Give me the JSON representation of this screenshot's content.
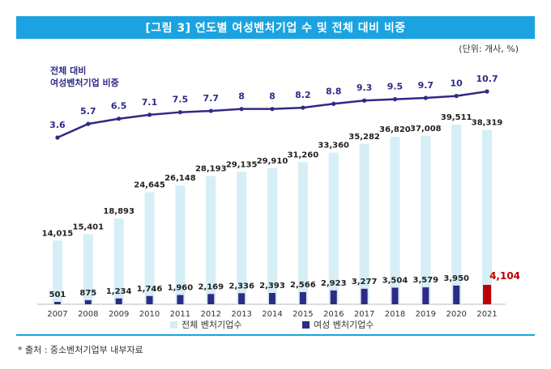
{
  "header": {
    "title": "[그림 3] 연도별 여성벤처기업 수 및 전체 대비 비중",
    "unit": "(단위: 개사, %)"
  },
  "footer": {
    "source": "* 출처 : 중소벤처기업부 내부자료"
  },
  "colors": {
    "title_bg": "#1aa3e0",
    "total_bar": "#d6eef5",
    "women_bar": "#2e2a86",
    "women_bar_highlight": "#c00000",
    "ratio_line": "#2e2a86",
    "highlight_label": "#c00000"
  },
  "chart_data": {
    "type": "bar",
    "categories": [
      "2007",
      "2008",
      "2009",
      "2010",
      "2011",
      "2012",
      "2013",
      "2014",
      "2015",
      "2016",
      "2017",
      "2018",
      "2019",
      "2020",
      "2021"
    ],
    "series": [
      {
        "name": "전체 벤처기업수",
        "type": "bar",
        "values": [
          14015,
          15401,
          18893,
          24645,
          26148,
          28193,
          29135,
          29910,
          31260,
          33360,
          35282,
          36820,
          37008,
          39511,
          38319
        ],
        "labels": [
          "14,015",
          "15,401",
          "18,893",
          "24,645",
          "26,148",
          "28,193",
          "29,135",
          "29,910",
          "31,260",
          "33,360",
          "35,282",
          "36,820",
          "37,008",
          "39,511",
          "38,319"
        ]
      },
      {
        "name": "여성 벤처기업수",
        "type": "bar",
        "values": [
          501,
          875,
          1234,
          1746,
          1960,
          2169,
          2336,
          2393,
          2566,
          2923,
          3277,
          3504,
          3579,
          3950,
          4104
        ],
        "labels": [
          "501",
          "875",
          "1,234",
          "1,746",
          "1,960",
          "2,169",
          "2,336",
          "2,393",
          "2,566",
          "2,923",
          "3,277",
          "3,504",
          "3,579",
          "3,950",
          "4,104"
        ]
      },
      {
        "name": "전체 대비 여성벤처기업 비중",
        "type": "line",
        "values": [
          3.6,
          5.7,
          6.5,
          7.1,
          7.5,
          7.7,
          8,
          8,
          8.2,
          8.8,
          9.3,
          9.5,
          9.7,
          10,
          10.7
        ],
        "labels": [
          "3.6",
          "5.7",
          "6.5",
          "7.1",
          "7.5",
          "7.7",
          "8",
          "8",
          "8.2",
          "8.8",
          "9.3",
          "9.5",
          "9.7",
          "10",
          "10.7"
        ]
      }
    ],
    "line_label": [
      "전체 대비",
      "여성벤처기업 비중"
    ],
    "legend": [
      "전체 벤처기업수",
      "여성 벤처기업수"
    ],
    "legend_position": "bottom",
    "grid": false
  }
}
